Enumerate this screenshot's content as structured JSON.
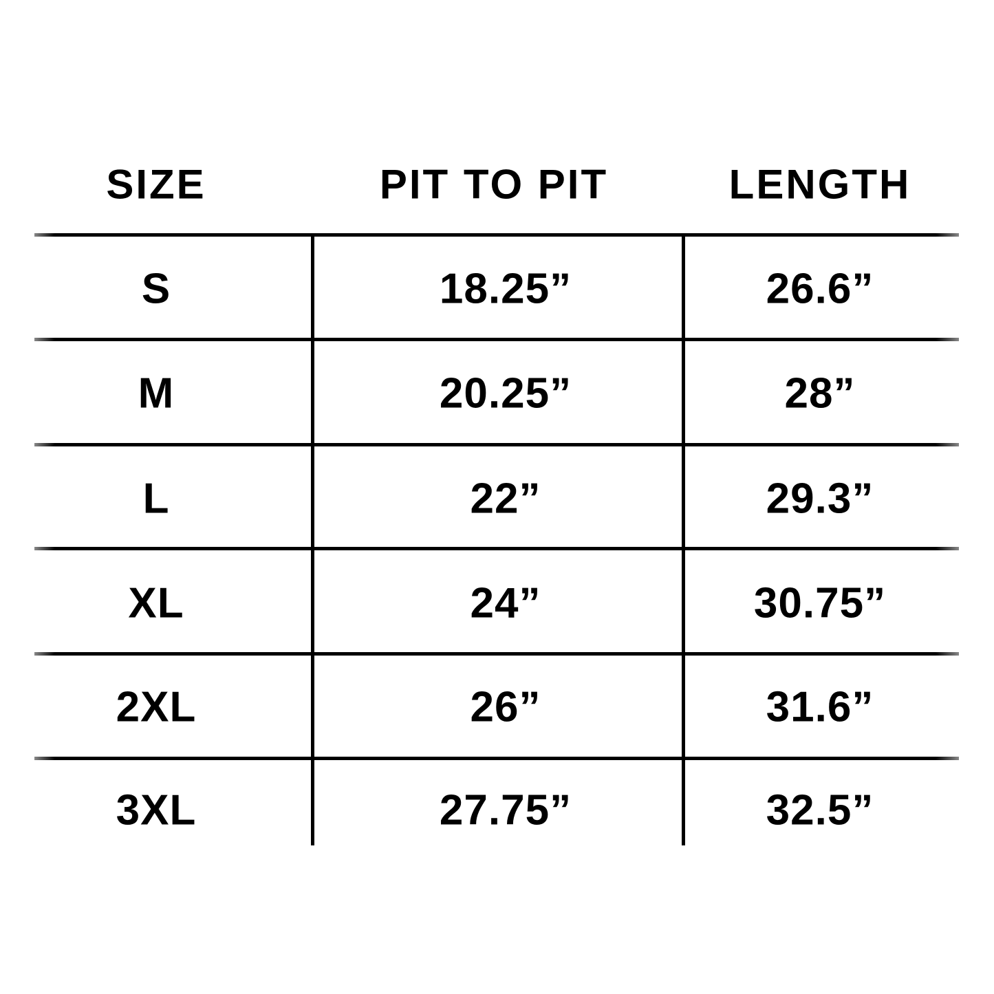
{
  "table": {
    "headers": [
      "SIZE",
      "PIT TO PIT",
      "LENGTH"
    ],
    "rows": [
      [
        "S",
        "18.25”",
        "26.6”"
      ],
      [
        "M",
        "20.25”",
        "28”"
      ],
      [
        "L",
        "22”",
        "29.3”"
      ],
      [
        "XL",
        "24”",
        "30.75”"
      ],
      [
        "2XL",
        "26”",
        "31.6”"
      ],
      [
        "3XL",
        "27.75”",
        "32.5”"
      ]
    ]
  }
}
